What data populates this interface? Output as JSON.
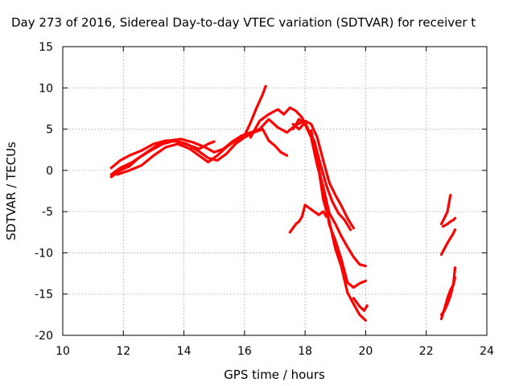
{
  "chart_data": {
    "type": "scatter",
    "title": "Day 273 of 2016, Sidereal Day-to-day VTEC variation (SDTVAR) for receiver t",
    "xlabel": "GPS time / hours",
    "ylabel": "SDTVAR / TECUs",
    "xlim": [
      10,
      24
    ],
    "ylim": [
      -20,
      15
    ],
    "xticks": [
      10,
      12,
      14,
      16,
      18,
      20,
      22,
      24
    ],
    "yticks": [
      15,
      10,
      5,
      0,
      -5,
      -10,
      -15,
      -20
    ],
    "xtick_labels": [
      "10",
      "12",
      "14",
      "16",
      "18",
      "20",
      "22",
      "24"
    ],
    "ytick_labels": [
      "15",
      "10",
      "5",
      "0",
      "-5",
      "-10",
      "-15",
      "-20"
    ],
    "grid": true,
    "marker": "plus",
    "color": "#ff0000",
    "series": [
      {
        "x": [
          11.6,
          11.9,
          12.2,
          12.6,
          13.0,
          13.4,
          13.8,
          14.2,
          14.5,
          14.8,
          15.0
        ],
        "y": [
          0.3,
          1.2,
          1.8,
          2.4,
          3.2,
          3.6,
          3.5,
          3.0,
          2.6,
          3.2,
          3.5
        ]
      },
      {
        "x": [
          11.6,
          11.9,
          12.3,
          12.7,
          13.1,
          13.5,
          13.9,
          14.3,
          14.7,
          15.0,
          15.3,
          15.6,
          15.9,
          16.2,
          16.5,
          16.8,
          17.1,
          17.4,
          17.7,
          18.0,
          18.2,
          18.4,
          18.6,
          18.8,
          19.0,
          19.2,
          19.4,
          19.6
        ],
        "y": [
          -0.5,
          0.3,
          1.0,
          2.0,
          3.0,
          3.6,
          3.8,
          3.4,
          2.8,
          2.2,
          2.6,
          3.5,
          4.2,
          4.6,
          5.0,
          6.2,
          5.2,
          4.6,
          5.5,
          6.0,
          5.6,
          4.0,
          1.2,
          -1.5,
          -3.0,
          -4.3,
          -5.8,
          -7.0
        ]
      },
      {
        "x": [
          11.6,
          11.9,
          12.2,
          12.5,
          12.9,
          13.3,
          13.7,
          14.1,
          14.5,
          14.8,
          15.1,
          15.4,
          15.7,
          16.0,
          16.3,
          16.6,
          16.8,
          17.0,
          17.2,
          17.4
        ],
        "y": [
          -0.8,
          0.0,
          0.5,
          1.5,
          2.4,
          3.2,
          3.6,
          3.2,
          2.3,
          1.5,
          1.2,
          2.0,
          3.2,
          4.0,
          4.6,
          5.0,
          3.6,
          3.0,
          2.2,
          1.8
        ]
      },
      {
        "x": [
          11.8,
          12.2,
          12.6,
          13.0,
          13.4,
          13.8,
          14.2,
          14.5,
          14.8,
          15.1,
          15.4,
          15.7,
          16.0,
          16.2,
          16.4,
          16.6,
          16.7
        ],
        "y": [
          -0.5,
          0.0,
          0.6,
          1.8,
          2.8,
          3.2,
          2.6,
          1.8,
          1.0,
          1.8,
          2.8,
          3.6,
          4.2,
          5.8,
          7.6,
          9.2,
          10.2
        ]
      },
      {
        "x": [
          16.2,
          16.5,
          16.8,
          17.1,
          17.3,
          17.5,
          17.7,
          17.9,
          18.1,
          18.3,
          18.5,
          18.7,
          18.9,
          19.1,
          19.3,
          19.5
        ],
        "y": [
          4.0,
          6.0,
          6.8,
          7.4,
          6.8,
          7.6,
          7.2,
          6.4,
          4.8,
          3.6,
          0.8,
          -1.8,
          -3.8,
          -5.2,
          -6.0,
          -7.2
        ]
      },
      {
        "x": [
          17.6,
          17.8,
          18.0,
          18.2,
          18.4,
          18.6,
          18.8,
          19.0,
          19.2,
          19.4,
          19.6,
          19.8,
          20.0
        ],
        "y": [
          5.0,
          6.2,
          5.6,
          4.0,
          0.6,
          -2.0,
          -5.2,
          -6.5,
          -8.0,
          -9.3,
          -10.5,
          -11.4,
          -11.6
        ]
      },
      {
        "x": [
          17.6,
          17.8,
          18.0,
          18.2,
          18.4,
          18.6,
          18.8,
          19.0,
          19.2,
          19.4,
          19.6,
          19.8,
          20.0
        ],
        "y": [
          5.6,
          5.0,
          5.8,
          4.2,
          1.2,
          -2.4,
          -6.6,
          -8.5,
          -10.8,
          -13.6,
          -14.2,
          -13.7,
          -13.4
        ]
      },
      {
        "x": [
          17.5,
          17.7,
          17.8,
          17.9,
          18.0,
          18.15,
          18.3,
          18.45,
          18.6,
          18.7
        ],
        "y": [
          -7.5,
          -6.5,
          -6.2,
          -5.6,
          -4.2,
          -4.6,
          -5.0,
          -5.4,
          -5.0,
          -5.6
        ]
      },
      {
        "x": [
          18.2,
          18.4,
          18.6,
          18.8,
          19.0,
          19.2,
          19.4,
          19.6,
          19.8,
          20.0
        ],
        "y": [
          4.8,
          1.4,
          -3.5,
          -6.2,
          -9.5,
          -11.7,
          -14.8,
          -16.2,
          -17.5,
          -18.2
        ]
      },
      {
        "x": [
          19.6,
          19.8,
          19.95,
          20.05
        ],
        "y": [
          -15.5,
          -16.5,
          -17.0,
          -16.4
        ]
      },
      {
        "x": [
          22.5,
          22.6,
          22.7,
          22.8,
          22.9,
          22.95
        ],
        "y": [
          -17.5,
          -17.0,
          -16.2,
          -15.2,
          -13.7,
          -11.8
        ]
      },
      {
        "x": [
          22.5,
          22.6,
          22.7,
          22.8,
          22.9,
          22.95
        ],
        "y": [
          -18.0,
          -16.8,
          -15.5,
          -14.5,
          -13.8,
          -13.0
        ]
      },
      {
        "x": [
          22.5,
          22.6,
          22.7,
          22.8,
          22.9,
          22.95
        ],
        "y": [
          -10.2,
          -9.5,
          -8.8,
          -8.2,
          -7.6,
          -7.2
        ]
      },
      {
        "x": [
          22.5,
          22.6,
          22.7,
          22.75,
          22.8
        ],
        "y": [
          -6.5,
          -5.8,
          -5.0,
          -4.0,
          -3.0
        ]
      },
      {
        "x": [
          22.55,
          22.7,
          22.8,
          22.9,
          22.95
        ],
        "y": [
          -6.8,
          -6.5,
          -6.2,
          -6.0,
          -5.8
        ]
      }
    ]
  }
}
